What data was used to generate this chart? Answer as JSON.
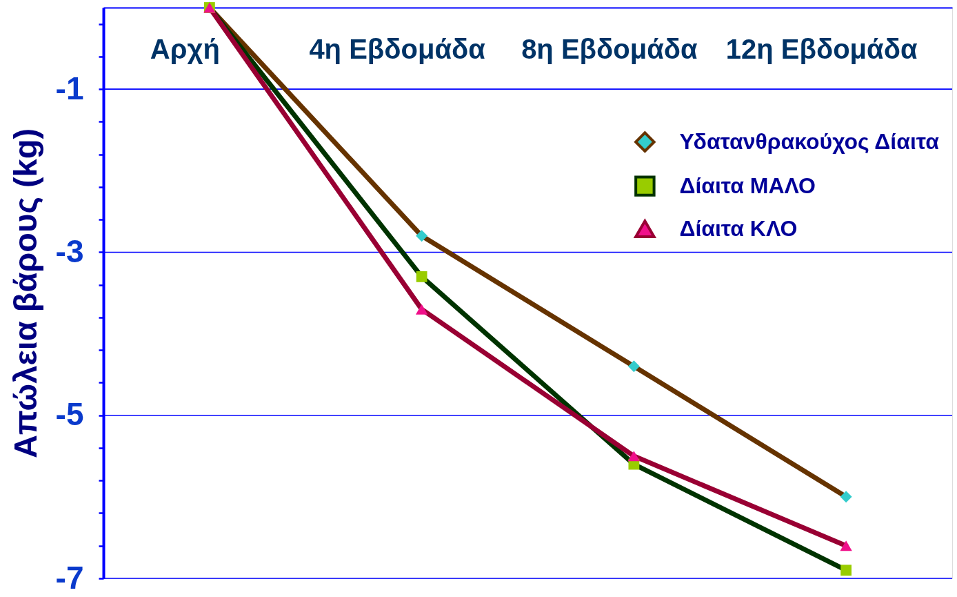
{
  "chart_data": {
    "type": "line",
    "ylabel": "Απώλεια βάρους (kg)",
    "categories": [
      "Αρχή",
      "4η Εβδομάδα",
      "8η Εβδομάδα",
      "12η Εβδομάδα"
    ],
    "series": [
      {
        "name": "Υδατανθρακούχος Δίαιτα",
        "color": "#663300",
        "colors": [
          "#33cccc",
          "#33cccc",
          "#33cccc",
          "#33cccc"
        ],
        "marker": "diamond",
        "values": [
          0,
          -2.8,
          -4.4,
          -6.0
        ]
      },
      {
        "name": "Δίαιτα ΜΑΛΟ",
        "color": "#003300",
        "colors": [
          "#99cc00",
          "#99cc00",
          "#99cc00",
          "#99cc00"
        ],
        "marker": "square",
        "values": [
          0,
          -3.3,
          -5.6,
          -6.9
        ]
      },
      {
        "name": "Δίαιτα ΚΛΟ",
        "color": "#990033",
        "colors": [
          "#f0108a",
          "#f0108a",
          "#f0108a",
          "#f0108a"
        ],
        "marker": "triangle",
        "values": [
          0,
          -3.7,
          -5.5,
          -6.6
        ]
      }
    ],
    "ylim": [
      -7,
      0
    ],
    "yticks": [
      -7,
      {
        "value": -6.6,
        "label": null
      },
      {
        "value": -6.2,
        "label": null
      },
      {
        "value": -5.8,
        "label": null
      },
      {
        "value": -5.4,
        "label": null
      },
      -5,
      {
        "value": -4.6,
        "label": null
      },
      {
        "value": -4.2,
        "label": null
      },
      {
        "value": -3.8,
        "label": null
      },
      {
        "value": -3.4,
        "label": null
      },
      -3,
      {
        "value": -2.6,
        "label": null
      },
      {
        "value": -2.2,
        "label": null
      },
      {
        "value": -1.8,
        "label": null
      },
      {
        "value": -1.4,
        "label": null
      },
      -1,
      {
        "value": -0.6,
        "label": null
      },
      {
        "value": -0.2,
        "label": null
      }
    ],
    "grid": "y",
    "legend": "top right",
    "line_style": "solid"
  }
}
